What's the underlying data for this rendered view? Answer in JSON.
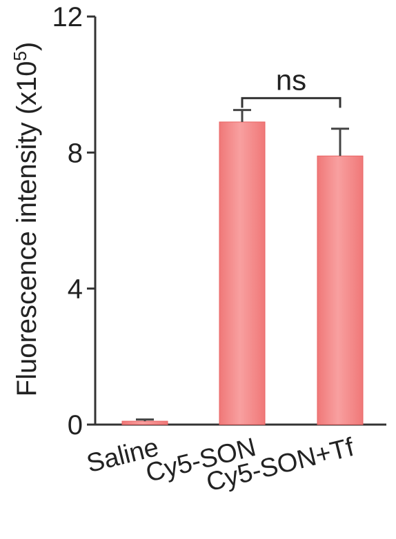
{
  "chart_data": {
    "type": "bar",
    "title": "",
    "xlabel": "",
    "ylabel": "Fluorescence intensity (x10",
    "ylabel_superscript": "5",
    "ylabel_close": ")",
    "categories": [
      "Saline",
      "Cy5-SON",
      "Cy5-SON+Tf"
    ],
    "values": [
      0.1,
      8.9,
      7.9
    ],
    "errors": [
      0.05,
      0.35,
      0.8
    ],
    "ylim": [
      0,
      12
    ],
    "yticks": [
      0,
      4,
      8,
      12
    ],
    "ytick_labels": [
      "0",
      "4",
      "8",
      "12"
    ],
    "bar_color": "#f07878",
    "bar_highlight": "#f8a0a0",
    "grid": false,
    "annotation": {
      "text": "ns",
      "from_category": 1,
      "to_category": 2,
      "at_value": 9.6
    }
  }
}
